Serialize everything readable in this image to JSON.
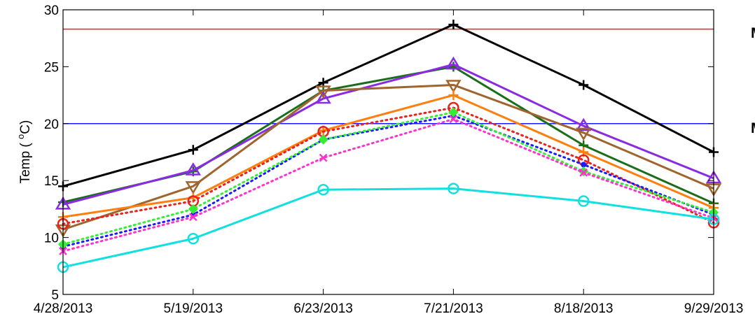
{
  "chart_data": {
    "type": "line",
    "categories": [
      "4/28/2013",
      "5/19/2013",
      "6/23/2013",
      "7/21/2013",
      "8/18/2013",
      "9/29/2013"
    ],
    "ylim": [
      5,
      30
    ],
    "yticks": [
      5,
      10,
      15,
      20,
      25,
      30
    ],
    "ylabel": "Temp ( ",
    "ylabel_sup": "o",
    "ylabel_unit": "C)",
    "grid": false,
    "reference_lines": [
      {
        "value": 28.3,
        "color": "#e8231c"
      },
      {
        "value": 20.0,
        "color": "#1a1aff"
      }
    ],
    "series": [
      {
        "color": "#000000",
        "style": "solid",
        "marker": "plus",
        "values": [
          14.5,
          17.7,
          23.6,
          28.7,
          23.4,
          17.5
        ]
      },
      {
        "color": "#1a6e1a",
        "style": "solid",
        "marker": "plus",
        "values": [
          13.1,
          15.8,
          22.9,
          25.0,
          18.1,
          13.0
        ]
      },
      {
        "color": "#8a2be2",
        "style": "solid",
        "marker": "triangle-up",
        "values": [
          12.9,
          15.9,
          22.2,
          25.2,
          19.8,
          15.2
        ]
      },
      {
        "color": "#a0652e",
        "style": "solid",
        "marker": "triangle-down",
        "values": [
          10.7,
          14.5,
          22.9,
          23.4,
          19.2,
          14.3
        ]
      },
      {
        "color": "#ff7f0e",
        "style": "solid",
        "marker": "plus",
        "values": [
          11.8,
          13.5,
          19.4,
          22.5,
          17.5,
          12.6
        ]
      },
      {
        "color": "#e8231c",
        "style": "dotted",
        "marker": "circle",
        "values": [
          11.2,
          13.2,
          19.3,
          21.4,
          16.8,
          11.3
        ]
      },
      {
        "color": "#1a1aff",
        "style": "dotted",
        "marker": "dot",
        "values": [
          9.2,
          12.0,
          18.6,
          20.7,
          16.4,
          12.0
        ]
      },
      {
        "color": "#33ee33",
        "style": "dotted",
        "marker": "diamond",
        "values": [
          9.4,
          12.5,
          18.6,
          21.0,
          15.8,
          12.2
        ]
      },
      {
        "color": "#ff33cc",
        "style": "dotted",
        "marker": "x",
        "values": [
          8.8,
          11.8,
          17.0,
          20.4,
          15.7,
          11.7
        ]
      },
      {
        "color": "#11e0e0",
        "style": "solid",
        "marker": "circle",
        "values": [
          7.4,
          9.9,
          14.2,
          14.3,
          13.2,
          11.6
        ]
      }
    ]
  },
  "side_labels": [
    "M",
    "M"
  ]
}
